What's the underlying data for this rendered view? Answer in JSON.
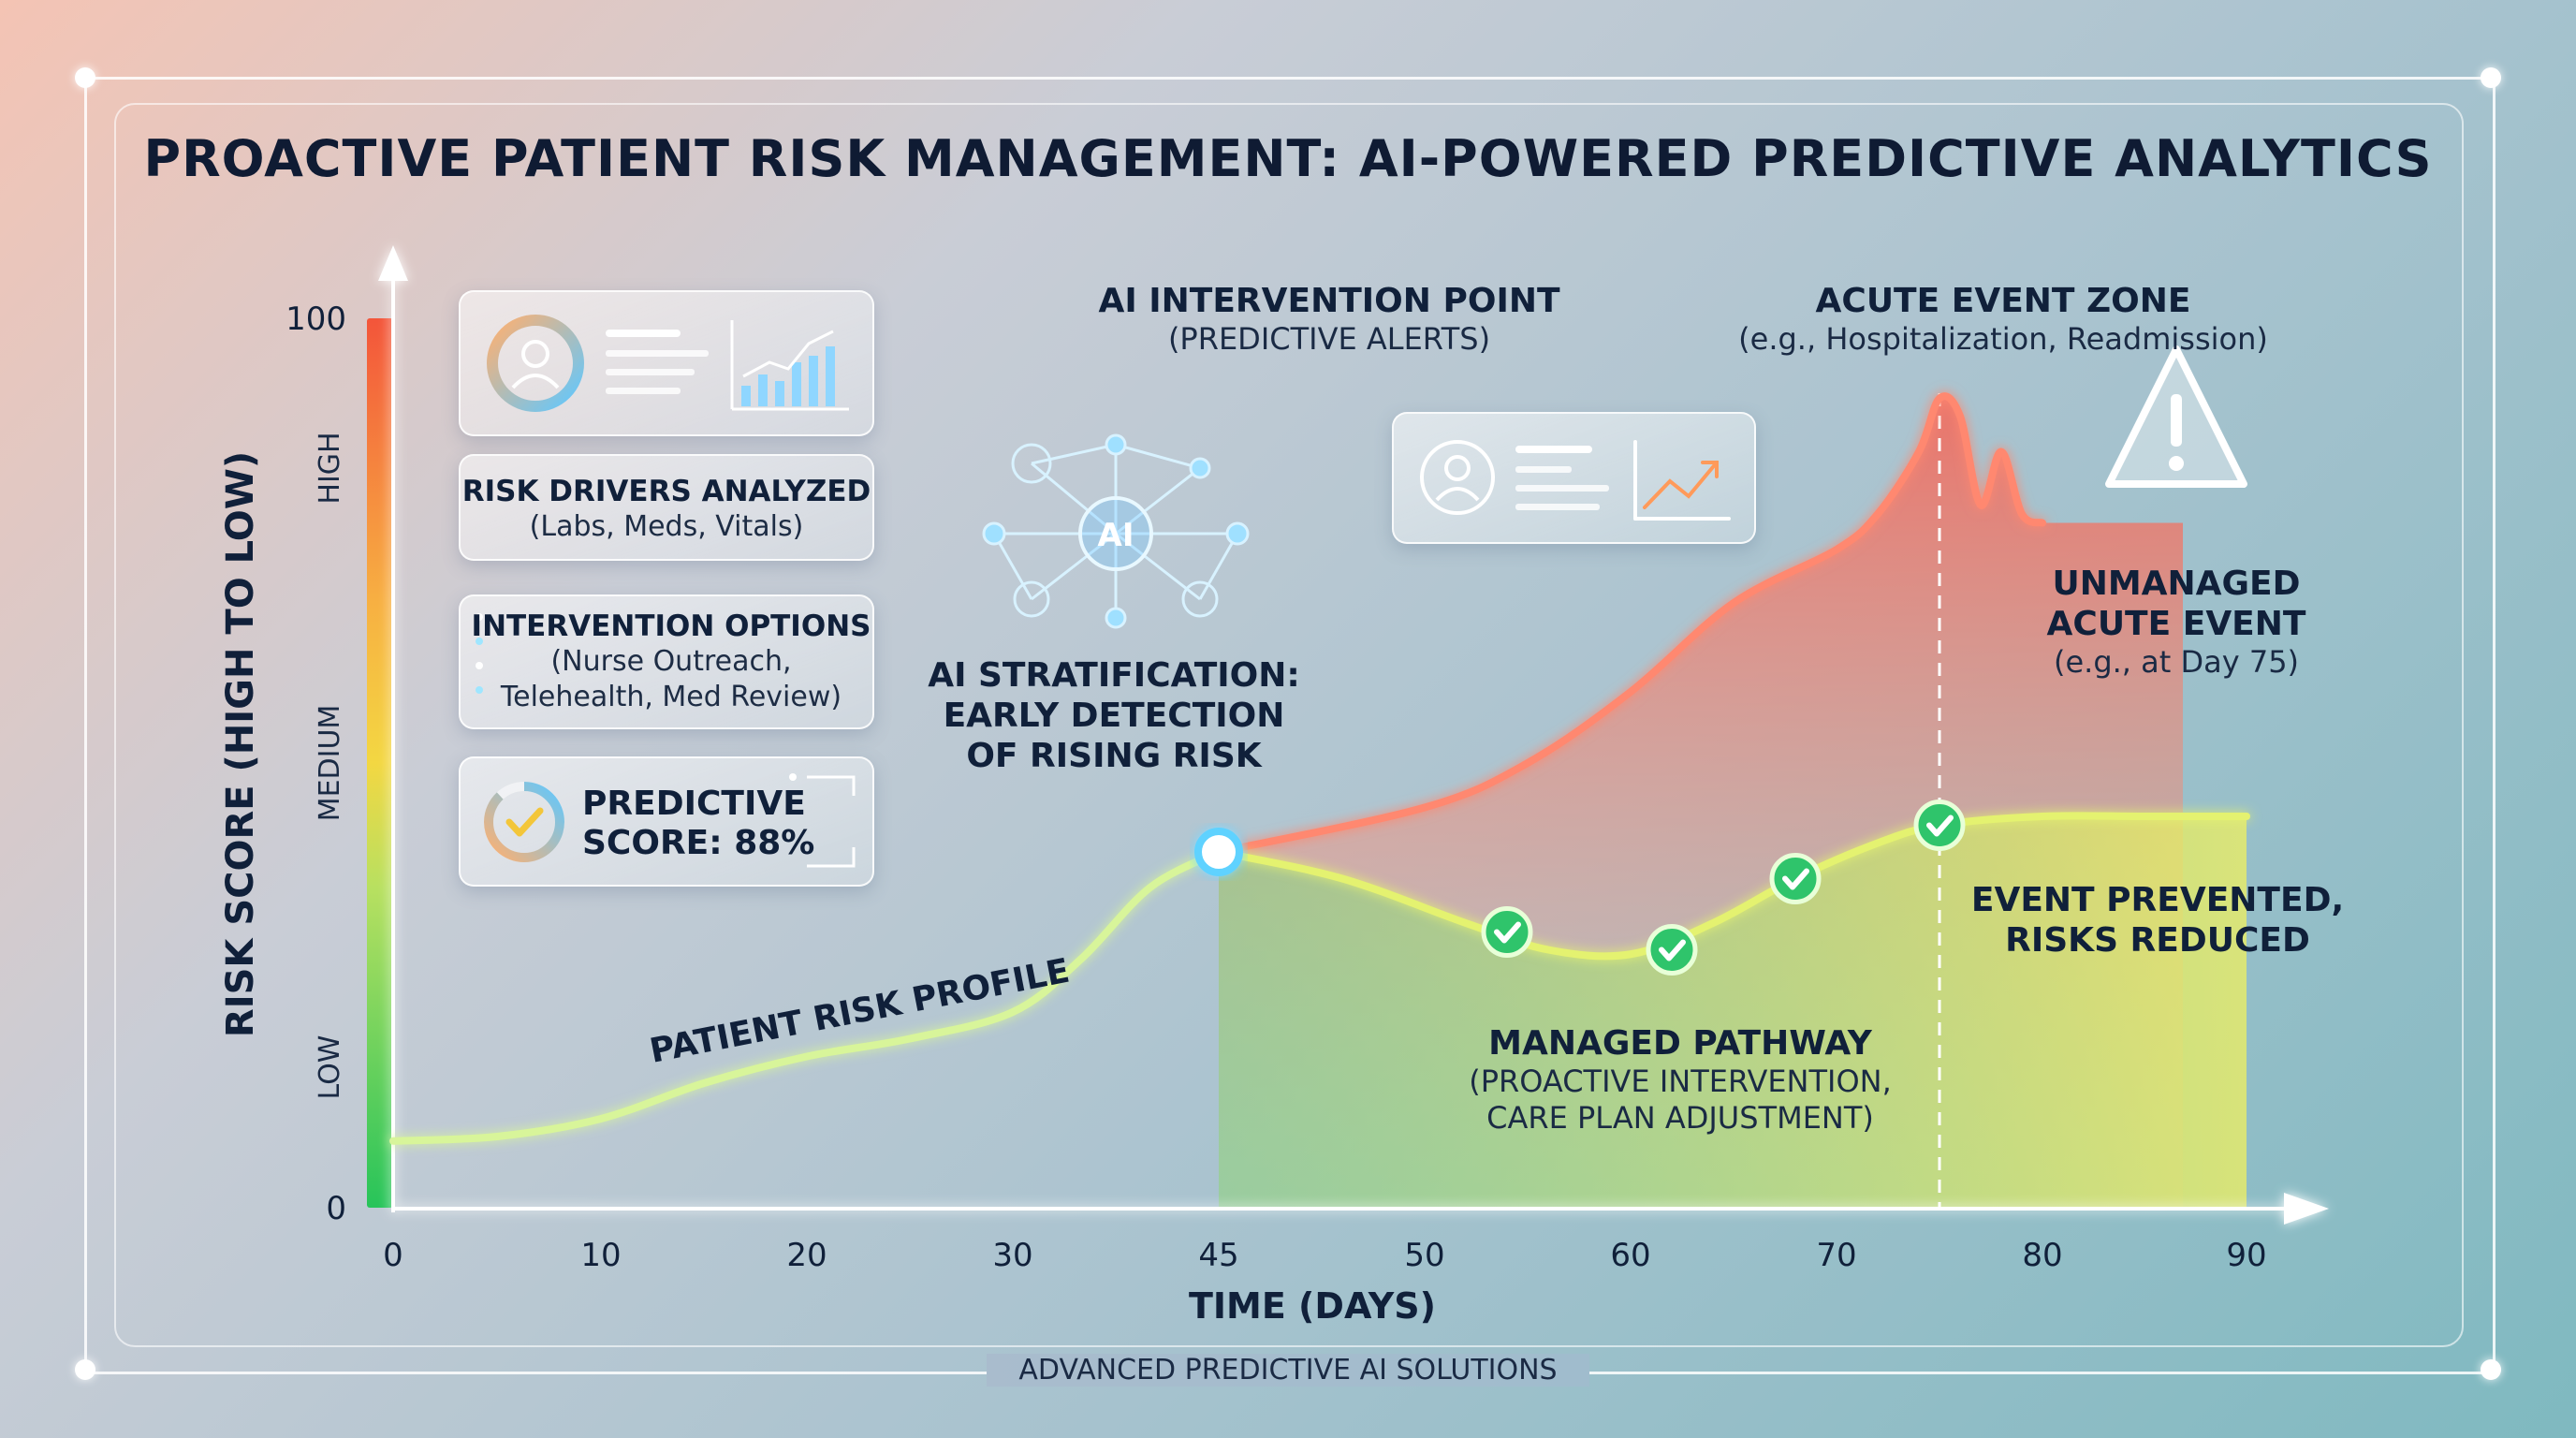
{
  "title": "PROACTIVE PATIENT RISK MANAGEMENT: AI-POWERED PREDICTIVE ANALYTICS",
  "footer": "ADVANCED PREDICTIVE AI SOLUTIONS",
  "cards": {
    "risk_drivers": {
      "title": "RISK DRIVERS ANALYZED",
      "subtitle": "(Labs, Meds, Vitals)"
    },
    "intervention_options": {
      "title": "INTERVENTION OPTIONS",
      "line1": "(Nurse Outreach,",
      "line2": "Telehealth, Med Review)"
    },
    "predictive_score": {
      "line1": "PREDICTIVE",
      "line2": "SCORE: 88%",
      "value": 88
    }
  },
  "annotations": {
    "intervention_point": {
      "title": "AI INTERVENTION POINT",
      "subtitle": "(PREDICTIVE ALERTS)"
    },
    "acute_zone": {
      "title": "ACUTE EVENT ZONE",
      "subtitle": "(e.g., Hospitalization, Readmission)"
    },
    "stratification": {
      "line1": "AI STRATIFICATION:",
      "line2": "EARLY DETECTION",
      "line3": "OF RISING RISK"
    },
    "unmanaged": {
      "line1": "UNMANAGED",
      "line2": "ACUTE EVENT",
      "line3": "(e.g., at Day 75)"
    },
    "prevented": {
      "line1": "EVENT PREVENTED,",
      "line2": "RISKS REDUCED"
    },
    "managed": {
      "line1": "MANAGED PATHWAY",
      "line2": "(PROACTIVE INTERVENTION,",
      "line3": "CARE PLAN ADJUSTMENT)"
    },
    "profile_label": "PATIENT RISK PROFILE",
    "ai_badge": "AI"
  },
  "colors": {
    "low": "#27c45a",
    "medium": "#f3d742",
    "high": "#f3553a",
    "baseline_line": "#d8f59a",
    "unmanaged_line": "#ff8870",
    "managed_line": "#e4f270",
    "intervention_line": "#5fd2ff",
    "check": "#2fc46b"
  },
  "chart_data": {
    "type": "line",
    "xlabel": "TIME (DAYS)",
    "ylabel": "RISK SCORE (HIGH TO LOW)",
    "x_ticks": [
      0,
      10,
      20,
      30,
      45,
      50,
      60,
      70,
      80,
      90
    ],
    "y_ticks": [
      0,
      100
    ],
    "ylim": [
      0,
      100
    ],
    "risk_bands": [
      "LOW",
      "MEDIUM",
      "HIGH"
    ],
    "intervention_day": 45,
    "acute_event_day": 75,
    "series": [
      {
        "role": "baseline",
        "x": [
          0,
          5,
          10,
          15,
          20,
          25,
          30,
          35,
          40,
          45
        ],
        "y": [
          7.5,
          8,
          10,
          14,
          17,
          19,
          22,
          28,
          36,
          40
        ]
      },
      {
        "role": "unmanaged",
        "x": [
          45,
          50,
          55,
          60,
          65,
          70,
          72,
          74,
          75,
          76,
          77,
          78,
          79,
          80
        ],
        "y": [
          40,
          45,
          50,
          58,
          68,
          74,
          78,
          85,
          91,
          89,
          79,
          85,
          78,
          77
        ]
      },
      {
        "role": "managed",
        "x": [
          45,
          48,
          52,
          56,
          60,
          64,
          68,
          72,
          75,
          80,
          85,
          90
        ],
        "y": [
          40,
          37,
          32,
          29,
          28.5,
          32,
          37,
          41,
          43,
          44,
          44,
          44
        ]
      },
      {
        "role": "checkpoints",
        "x": [
          54,
          62,
          68,
          75
        ],
        "y": [
          31,
          29,
          37,
          43
        ]
      }
    ]
  }
}
